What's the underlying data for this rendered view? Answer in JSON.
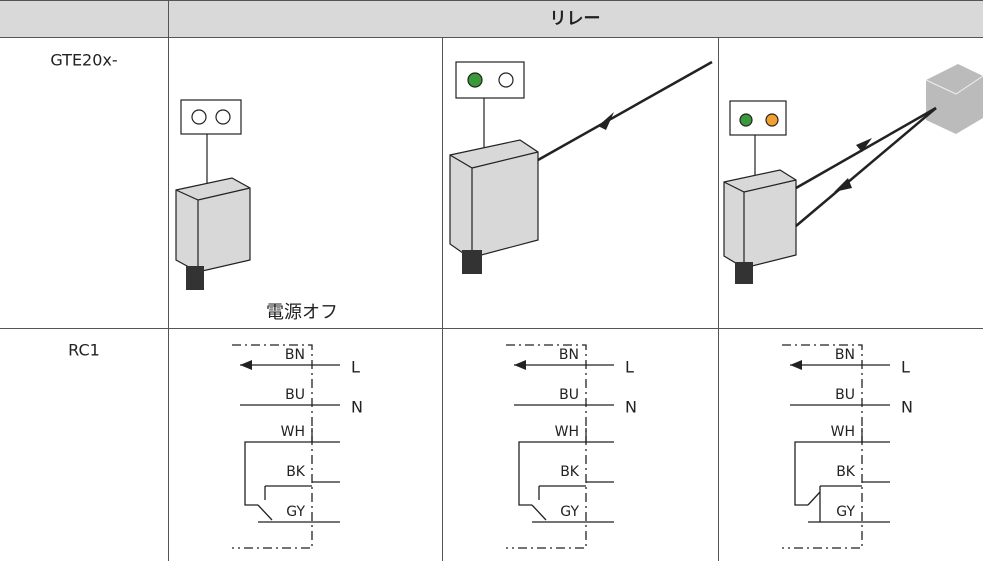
{
  "table": {
    "header": {
      "title": "リレー"
    },
    "rows": [
      {
        "label": "GTE20x-",
        "caption": "電源オフ"
      },
      {
        "label": "RC1",
        "diagrams": [
          {
            "wires": [
              "BN",
              "BU",
              "WH",
              "BK",
              "GY"
            ],
            "terminals": [
              "L",
              "N"
            ]
          },
          {
            "wires": [
              "BN",
              "BU",
              "WH",
              "BK",
              "GY"
            ],
            "terminals": [
              "L",
              "N"
            ]
          },
          {
            "wires": [
              "BN",
              "BU",
              "WH",
              "BK",
              "GY"
            ],
            "terminals": [
              "L",
              "N"
            ]
          }
        ]
      }
    ]
  }
}
